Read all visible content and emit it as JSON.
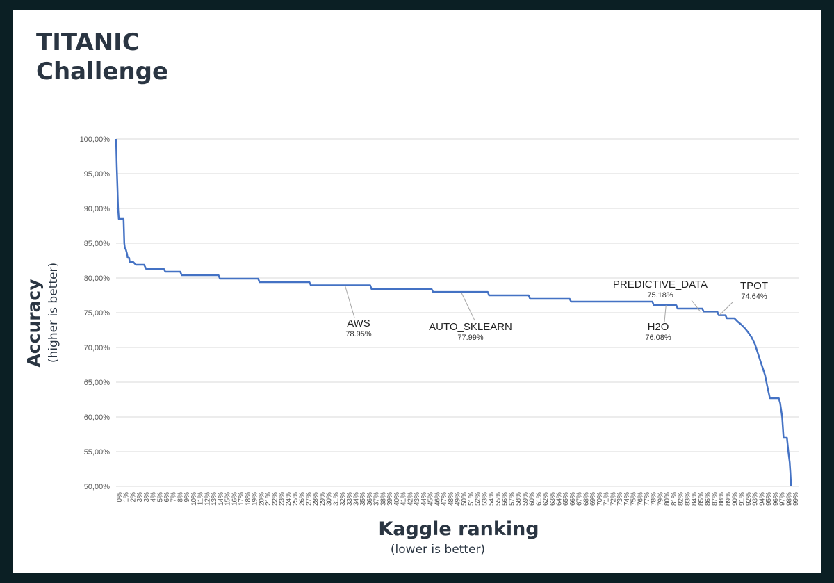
{
  "title": {
    "line1": "TITANIC",
    "line2": "Challenge"
  },
  "chart_data": {
    "type": "line",
    "title": "TITANIC Challenge",
    "xlabel": "Kaggle ranking",
    "xlabel_note": "(lower is better)",
    "ylabel": "Accuracy",
    "ylabel_note": "(higher is better)",
    "ylim": [
      50,
      100
    ],
    "xlim": [
      0,
      100
    ],
    "grid": true,
    "line_color": "#4472c4",
    "y_tick_labels": [
      "50,00%",
      "55,00%",
      "60,00%",
      "65,00%",
      "70,00%",
      "75,00%",
      "80,00%",
      "85,00%",
      "90,00%",
      "95,00%",
      "100,00%"
    ],
    "x_tick_labels": [
      "0%",
      "1%",
      "2%",
      "3%",
      "3%",
      "4%",
      "5%",
      "6%",
      "7%",
      "8%",
      "9%",
      "10%",
      "11%",
      "12%",
      "13%",
      "14%",
      "15%",
      "16%",
      "17%",
      "18%",
      "19%",
      "20%",
      "21%",
      "22%",
      "23%",
      "24%",
      "25%",
      "26%",
      "27%",
      "28%",
      "29%",
      "30%",
      "31%",
      "32%",
      "33%",
      "34%",
      "35%",
      "36%",
      "37%",
      "38%",
      "39%",
      "40%",
      "41%",
      "42%",
      "43%",
      "44%",
      "45%",
      "46%",
      "47%",
      "48%",
      "49%",
      "50%",
      "51%",
      "52%",
      "53%",
      "54%",
      "55%",
      "56%",
      "57%",
      "58%",
      "59%",
      "60%",
      "61%",
      "62%",
      "63%",
      "64%",
      "65%",
      "66%",
      "67%",
      "68%",
      "69%",
      "70%",
      "71%",
      "72%",
      "73%",
      "74%",
      "75%",
      "76%",
      "77%",
      "78%",
      "79%",
      "80%",
      "81%",
      "82%",
      "83%",
      "84%",
      "85%",
      "86%",
      "87%",
      "88%",
      "89%",
      "90%",
      "91%",
      "92%",
      "93%",
      "94%",
      "95%",
      "96%",
      "97%",
      "98%",
      "99%"
    ],
    "series": [
      {
        "x": [
          0,
          0.1,
          0.2,
          0.3,
          0.4,
          0.5,
          0.6,
          0.7,
          1.1,
          1.2,
          1.3,
          1.4,
          1.6,
          1.7,
          1.9,
          2.0,
          2.3,
          2.5,
          2.9,
          3.2,
          4.1,
          4.4,
          7.0,
          7.2,
          9.4,
          9.6,
          15.0,
          15.2,
          20.8,
          21.0,
          28.3,
          28.5,
          37.2,
          37.4,
          46.2,
          46.4,
          54.4,
          54.6,
          60.4,
          60.6,
          66.4,
          66.6,
          78.5,
          78.7,
          82.0,
          82.2,
          85.8,
          86.0,
          88.0,
          88.2,
          89.2,
          89.4,
          90.5,
          91.0,
          91.5,
          92.0,
          92.5,
          93.0,
          93.5,
          94.0,
          94.5,
          95.0,
          95.3,
          95.7,
          96.1,
          96.4,
          96.7,
          97.0,
          97.2,
          97.5,
          97.7,
          98.0,
          98.2,
          98.4,
          98.6,
          98.7,
          98.8
        ],
        "y": [
          100,
          96,
          93,
          90,
          88.5,
          88.5,
          88.5,
          88.5,
          88.5,
          85,
          84.2,
          84.2,
          83.5,
          82.9,
          82.9,
          82.3,
          82.3,
          82.3,
          81.9,
          81.9,
          81.9,
          81.3,
          81.3,
          80.9,
          80.9,
          80.4,
          80.4,
          79.9,
          79.9,
          79.4,
          79.4,
          78.95,
          78.95,
          78.4,
          78.4,
          77.99,
          77.99,
          77.5,
          77.5,
          77.0,
          77.0,
          76.6,
          76.6,
          76.08,
          76.08,
          75.6,
          75.6,
          75.18,
          75.18,
          74.64,
          74.64,
          74.2,
          74.2,
          73.7,
          73.3,
          72.8,
          72.2,
          71.5,
          70.5,
          69.0,
          67.5,
          66.0,
          64.5,
          62.7,
          62.7,
          62.7,
          62.7,
          62.7,
          62.0,
          60.0,
          57.0,
          57.0,
          57.0,
          55.0,
          53.5,
          52.0,
          50.0
        ]
      }
    ],
    "annotations": [
      {
        "name": "AWS",
        "value": "78.95%",
        "x": 33.5,
        "y": 78.95
      },
      {
        "name": "AUTO_SKLEARN",
        "value": "77.99%",
        "x": 50.5,
        "y": 77.99
      },
      {
        "name": "PREDICTIVE_DATA",
        "value": "75.18%",
        "x": 85.5,
        "y": 75.18
      },
      {
        "name": "H2O",
        "value": "76.08%",
        "x": 80.5,
        "y": 76.08
      },
      {
        "name": "TPOT",
        "value": "74.64%",
        "x": 88.3,
        "y": 74.64
      }
    ]
  }
}
